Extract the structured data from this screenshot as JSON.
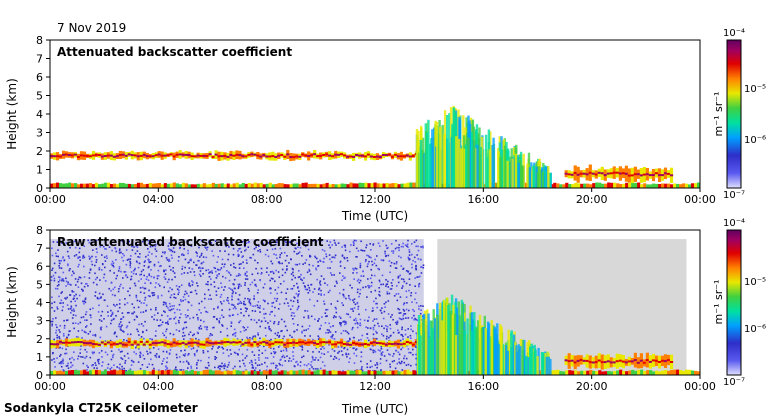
{
  "date": "7 Nov 2019",
  "footer": "Sodankyla CT25K ceilometer",
  "colorbar": {
    "unit": "m⁻¹ sr⁻¹",
    "ticks": [
      "10⁻⁴",
      "10⁻⁵",
      "10⁻⁶",
      "10⁻⁷"
    ],
    "range": [
      1e-07,
      0.0001
    ],
    "scale": "log",
    "colors": [
      "#e0e0ff",
      "#5a5af0",
      "#2e2ec8",
      "#00a0ff",
      "#00e0a0",
      "#40d040",
      "#e8e800",
      "#ff8000",
      "#e00000",
      "#a00060",
      "#600060"
    ]
  },
  "chart_data": [
    {
      "type": "heatmap",
      "title": "Attenuated backscatter coefficient",
      "xlabel": "Time (UTC)",
      "ylabel": "Height (km)",
      "xticks": [
        "00:00",
        "04:00",
        "08:00",
        "12:00",
        "16:00",
        "20:00",
        "00:00"
      ],
      "xlim": [
        0,
        24
      ],
      "ylim": [
        0,
        8
      ],
      "yticks": [
        "0",
        "1",
        "2",
        "3",
        "4",
        "5",
        "6",
        "7",
        "8"
      ],
      "features": [
        {
          "kind": "cloud-layer",
          "t": [
            0,
            13.8
          ],
          "h": [
            1.5,
            2.0
          ],
          "level": "high"
        },
        {
          "kind": "surface-layer",
          "t": [
            0,
            24
          ],
          "h": [
            0,
            0.3
          ],
          "level": "medium"
        },
        {
          "kind": "precipitation",
          "t": [
            13.5,
            18.5
          ],
          "h": [
            0,
            4.5
          ],
          "level": "medium"
        },
        {
          "kind": "cloud-layer",
          "t": [
            19,
            23
          ],
          "h": [
            0.3,
            1.2
          ],
          "level": "high"
        }
      ]
    },
    {
      "type": "heatmap",
      "title": "Raw attenuated backscatter coefficient",
      "xlabel": "Time (UTC)",
      "ylabel": "Height (km)",
      "xticks": [
        "00:00",
        "04:00",
        "08:00",
        "12:00",
        "16:00",
        "20:00",
        "00:00"
      ],
      "xlim": [
        0,
        24
      ],
      "ylim": [
        0,
        8
      ],
      "yticks": [
        "0",
        "1",
        "2",
        "3",
        "4",
        "5",
        "6",
        "7",
        "8"
      ],
      "features": [
        {
          "kind": "noise",
          "t": [
            0,
            13.8
          ],
          "h": [
            0,
            7.5
          ],
          "level": "low"
        },
        {
          "kind": "cloud-layer",
          "t": [
            0,
            13.8
          ],
          "h": [
            1.5,
            2.0
          ],
          "level": "high"
        },
        {
          "kind": "surface-layer",
          "t": [
            0,
            24
          ],
          "h": [
            0,
            0.3
          ],
          "level": "medium"
        },
        {
          "kind": "precipitation",
          "t": [
            13.5,
            18.5
          ],
          "h": [
            0,
            4.5
          ],
          "level": "medium"
        },
        {
          "kind": "cloud-layer",
          "t": [
            19,
            23
          ],
          "h": [
            0.3,
            1.2
          ],
          "level": "high"
        }
      ]
    }
  ]
}
